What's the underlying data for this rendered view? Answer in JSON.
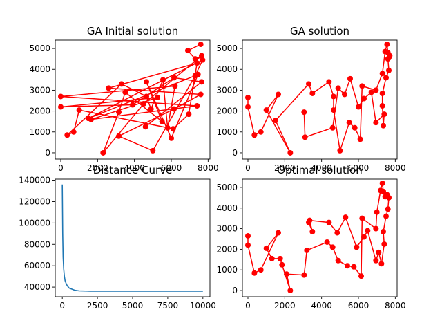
{
  "colors": {
    "route": "#ff0000",
    "curve": "#1f77b4"
  },
  "chart_data": [
    {
      "type": "line",
      "title": "GA Initial solution",
      "markers": "circle",
      "xlim": [
        -300,
        8100
      ],
      "ylim": [
        -300,
        5400
      ],
      "xticks": [
        0,
        2000,
        4000,
        6000,
        8000
      ],
      "yticks": [
        0,
        1000,
        2000,
        3000,
        4000,
        5000
      ],
      "x": [
        7600,
        6900,
        7300,
        7650,
        4500,
        2300,
        3150,
        3500,
        5500,
        4650,
        6000,
        7450,
        1500,
        7700,
        7300,
        5000,
        3150,
        6150,
        7600,
        2600,
        7400,
        6950,
        6100,
        1000,
        700,
        350,
        3300,
        4650,
        4900,
        5550,
        5800,
        6200,
        0,
        7400,
        1650,
        5250,
        0,
        3900,
        6150,
        7650,
        4600
      ],
      "y": [
        5200,
        4900,
        4500,
        4650,
        2350,
        0,
        1950,
        2900,
        1500,
        3400,
        700,
        3750,
        1650,
        4450,
        3700,
        100,
        800,
        2100,
        2800,
        3100,
        4300,
        1850,
        1150,
        2050,
        1000,
        850,
        3300,
        2700,
        2100,
        3500,
        1200,
        3200,
        2700,
        2250,
        1600,
        2650,
        2200,
        2300,
        3600,
        3400,
        1250
      ]
    },
    {
      "type": "line",
      "title": "GA solution",
      "markers": "circle",
      "xlim": [
        -300,
        8100
      ],
      "ylim": [
        -300,
        5400
      ],
      "xticks": [
        0,
        2000,
        4000,
        6000,
        8000
      ],
      "yticks": [
        0,
        1000,
        2000,
        3000,
        4000,
        5000
      ],
      "x": [
        0,
        0,
        350,
        700,
        1650,
        1000,
        2300,
        1500,
        3300,
        3500,
        4400,
        4650,
        4650,
        5000,
        5500,
        5800,
        6100,
        6200,
        6950,
        7300,
        7450,
        7550,
        7600,
        7650,
        7700,
        7600,
        7650,
        7500,
        7300,
        7300,
        7350,
        7400,
        6950,
        6700,
        6300,
        6000,
        5550,
        5250,
        4900,
        4600,
        3100,
        3050
      ],
      "y": [
        2650,
        2200,
        850,
        1000,
        2800,
        2050,
        0,
        1550,
        3300,
        2850,
        3400,
        2700,
        2050,
        100,
        1450,
        1200,
        650,
        3200,
        3000,
        3800,
        4850,
        5200,
        4800,
        4550,
        4650,
        4500,
        3950,
        3600,
        2850,
        2250,
        1300,
        1850,
        1450,
        2900,
        2600,
        2200,
        3550,
        2800,
        3100,
        1200,
        750,
        1950
      ]
    },
    {
      "type": "line",
      "title": "Distance Curve",
      "xlim": [
        -500,
        10500
      ],
      "ylim": [
        31000,
        141000
      ],
      "xticks": [
        0,
        2500,
        5000,
        7500,
        10000
      ],
      "yticks": [
        40000,
        60000,
        80000,
        100000,
        120000,
        140000
      ],
      "x": [
        0,
        30,
        60,
        100,
        150,
        200,
        300,
        400,
        500,
        700,
        900,
        1200,
        2000,
        4000,
        6000,
        8000,
        10000
      ],
      "y": [
        136000,
        90000,
        68000,
        57000,
        50000,
        46000,
        42500,
        40500,
        39000,
        38000,
        37000,
        36500,
        36200,
        36200,
        36200,
        36200,
        36200
      ]
    },
    {
      "type": "line",
      "title": "Optimal solution",
      "markers": "circle",
      "xlim": [
        -300,
        8100
      ],
      "ylim": [
        -300,
        5400
      ],
      "xticks": [
        0,
        2000,
        4000,
        6000,
        8000
      ],
      "yticks": [
        0,
        1000,
        2000,
        3000,
        4000,
        5000
      ],
      "x": [
        0,
        0,
        350,
        700,
        1650,
        1000,
        1300,
        1750,
        1850,
        2300,
        2100,
        3050,
        3200,
        4300,
        4600,
        4900,
        5400,
        5750,
        6150,
        6200,
        6950,
        7000,
        7200,
        7300,
        7350,
        7450,
        7550,
        7650,
        7600,
        7500,
        7350,
        7400,
        7250,
        7100,
        6950,
        6500,
        6300,
        5900,
        5300,
        4850,
        4400,
        3350,
        3500,
        3300
      ],
      "y": [
        2650,
        2200,
        850,
        1000,
        2800,
        2050,
        1550,
        1550,
        1250,
        0,
        800,
        750,
        1950,
        2350,
        2100,
        1450,
        1200,
        1150,
        700,
        3500,
        3000,
        3800,
        4850,
        5200,
        4800,
        4550,
        4650,
        4500,
        3950,
        3600,
        2850,
        2250,
        1300,
        1850,
        1450,
        2900,
        2600,
        2100,
        3550,
        2800,
        3300,
        3400,
        2850,
        3300
      ]
    }
  ]
}
